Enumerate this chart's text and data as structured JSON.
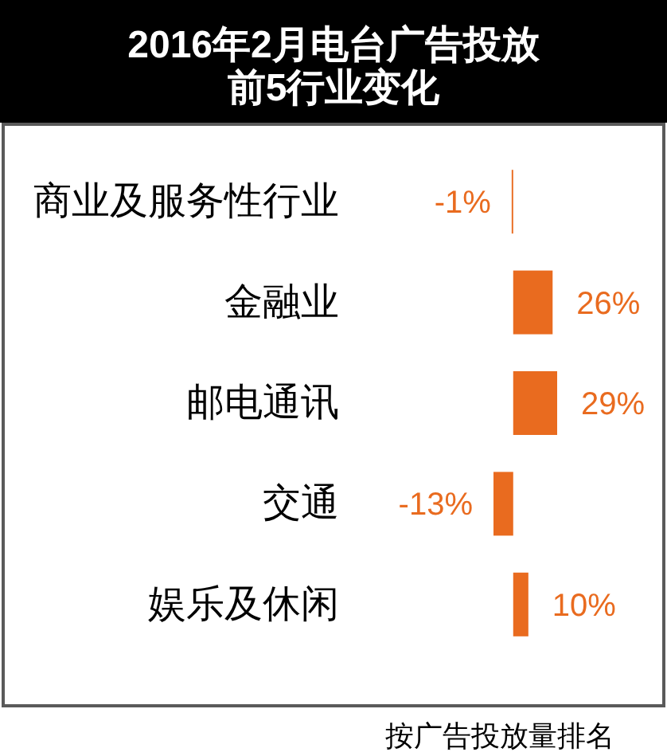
{
  "chart_data": {
    "type": "bar",
    "orientation": "horizontal",
    "title": "2016年2月电台广告投放前5行业变化",
    "categories": [
      "商业及服务性行业",
      "金融业",
      "邮电通讯",
      "交通",
      "娱乐及休闲"
    ],
    "values": [
      -1,
      26,
      29,
      -13,
      10
    ],
    "color": "#e96b1f",
    "value_labels": [
      "-1%",
      "26%",
      "29%",
      "-13%",
      "10%"
    ],
    "annotations": [
      "按广告投放量排名"
    ]
  }
}
